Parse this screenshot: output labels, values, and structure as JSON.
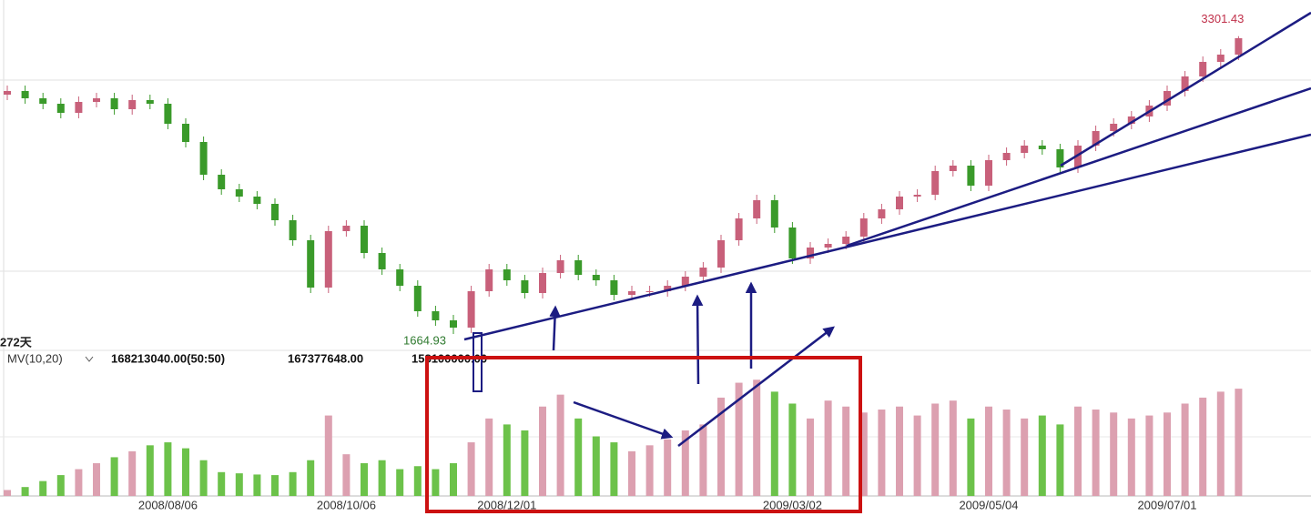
{
  "chart_data": {
    "type": "candlestick",
    "categories": [
      null,
      null,
      null,
      null,
      null,
      null,
      null,
      null,
      null,
      "2008/08/06",
      null,
      null,
      null,
      null,
      null,
      null,
      null,
      null,
      null,
      "2008/10/06",
      null,
      null,
      null,
      null,
      null,
      null,
      null,
      null,
      "2008/12/01",
      null,
      null,
      null,
      null,
      null,
      null,
      null,
      null,
      null,
      null,
      null,
      null,
      null,
      null,
      null,
      "2009/03/02",
      null,
      null,
      null,
      null,
      null,
      null,
      null,
      null,
      null,
      null,
      "2009/05/04",
      null,
      null,
      null,
      null,
      null,
      null,
      null,
      null,
      null,
      "2009/07/01",
      null,
      null,
      null,
      null
    ],
    "open": [
      2980,
      3000,
      2960,
      2930,
      2880,
      2940,
      2960,
      2900,
      2950,
      2930,
      2820,
      2720,
      2540,
      2460,
      2420,
      2380,
      2290,
      2180,
      1920,
      2230,
      2260,
      2110,
      2020,
      1930,
      1790,
      1740,
      1700,
      1900,
      2020,
      1960,
      1890,
      2000,
      2070,
      1990,
      1960,
      1880,
      1900,
      1900,
      1930,
      1980,
      2030,
      2180,
      2300,
      2400,
      2250,
      2080,
      2140,
      2160,
      2200,
      2300,
      2350,
      2420,
      2430,
      2560,
      2590,
      2480,
      2620,
      2660,
      2700,
      2680,
      2580,
      2700,
      2780,
      2820,
      2860,
      2920,
      3000,
      3080,
      3160,
      3200
    ],
    "high": [
      3030,
      3030,
      2990,
      2960,
      2970,
      2990,
      2990,
      2980,
      2980,
      2960,
      2850,
      2750,
      2570,
      2490,
      2450,
      2410,
      2320,
      2210,
      2260,
      2290,
      2290,
      2140,
      2050,
      1960,
      1820,
      1770,
      1930,
      2050,
      2050,
      1990,
      2030,
      2100,
      2100,
      2020,
      1990,
      1930,
      1930,
      1960,
      2010,
      2060,
      2210,
      2330,
      2430,
      2430,
      2280,
      2170,
      2190,
      2230,
      2330,
      2380,
      2450,
      2460,
      2590,
      2620,
      2620,
      2650,
      2690,
      2730,
      2730,
      2710,
      2730,
      2810,
      2850,
      2890,
      2950,
      3030,
      3110,
      3190,
      3230,
      3301.43
    ],
    "low": [
      2950,
      2930,
      2900,
      2850,
      2850,
      2910,
      2870,
      2870,
      2900,
      2790,
      2690,
      2510,
      2430,
      2390,
      2350,
      2260,
      2150,
      1890,
      1890,
      2200,
      2080,
      1990,
      1900,
      1760,
      1710,
      1664.93,
      1670,
      1870,
      1930,
      1860,
      1860,
      1970,
      1960,
      1930,
      1850,
      1850,
      1870,
      1870,
      1900,
      1950,
      2000,
      2150,
      2270,
      2220,
      2050,
      2050,
      2110,
      2130,
      2170,
      2270,
      2320,
      2390,
      2400,
      2530,
      2450,
      2450,
      2590,
      2630,
      2650,
      2550,
      2550,
      2670,
      2750,
      2790,
      2830,
      2890,
      2970,
      3050,
      3130,
      3170
    ],
    "close": [
      3000,
      2960,
      2930,
      2880,
      2940,
      2960,
      2900,
      2950,
      2930,
      2820,
      2720,
      2540,
      2460,
      2420,
      2380,
      2290,
      2180,
      1920,
      2230,
      2260,
      2110,
      2020,
      1930,
      1790,
      1740,
      1700,
      1900,
      2020,
      1960,
      1890,
      2000,
      2070,
      1990,
      1960,
      1880,
      1900,
      1900,
      1930,
      1980,
      2030,
      2180,
      2300,
      2400,
      2250,
      2080,
      2140,
      2160,
      2200,
      2300,
      2350,
      2420,
      2430,
      2560,
      2590,
      2480,
      2620,
      2660,
      2700,
      2680,
      2580,
      2700,
      2780,
      2820,
      2860,
      2920,
      3000,
      3080,
      3160,
      3200,
      3290
    ],
    "volume": [
      10000000,
      15000000,
      25000000,
      35000000,
      45000000,
      55000000,
      65000000,
      75000000,
      85000000,
      90000000,
      80000000,
      60000000,
      40000000,
      38000000,
      36000000,
      35000000,
      40000000,
      60000000,
      135000000,
      70000000,
      55000000,
      60000000,
      45000000,
      50000000,
      45000000,
      55000000,
      90000000,
      130000000,
      120000000,
      110000000,
      150000000,
      170000000,
      130000000,
      100000000,
      90000000,
      75000000,
      85000000,
      95000000,
      110000000,
      120000000,
      165000000,
      190000000,
      195000000,
      175000000,
      155000000,
      130000000,
      160000000,
      150000000,
      140000000,
      145000000,
      150000000,
      135000000,
      155000000,
      160000000,
      130000000,
      150000000,
      145000000,
      130000000,
      135000000,
      120000000,
      150000000,
      145000000,
      140000000,
      130000000,
      135000000,
      140000000,
      155000000,
      165000000,
      175000000,
      180000000
    ],
    "ylim": [
      1600,
      3400
    ],
    "volume_ylim": [
      0,
      200000000
    ],
    "up_color": "#c8607a",
    "down_color": "#3a9a2a",
    "volume_up_color": "#dca0b0",
    "volume_down_color": "#6cc24a",
    "period_label": "272天",
    "volume_indicator": "MV(10,20)",
    "volume_readouts": [
      "168213040.00(50:50)",
      "167377648.00",
      "158100000.00"
    ]
  }
}
